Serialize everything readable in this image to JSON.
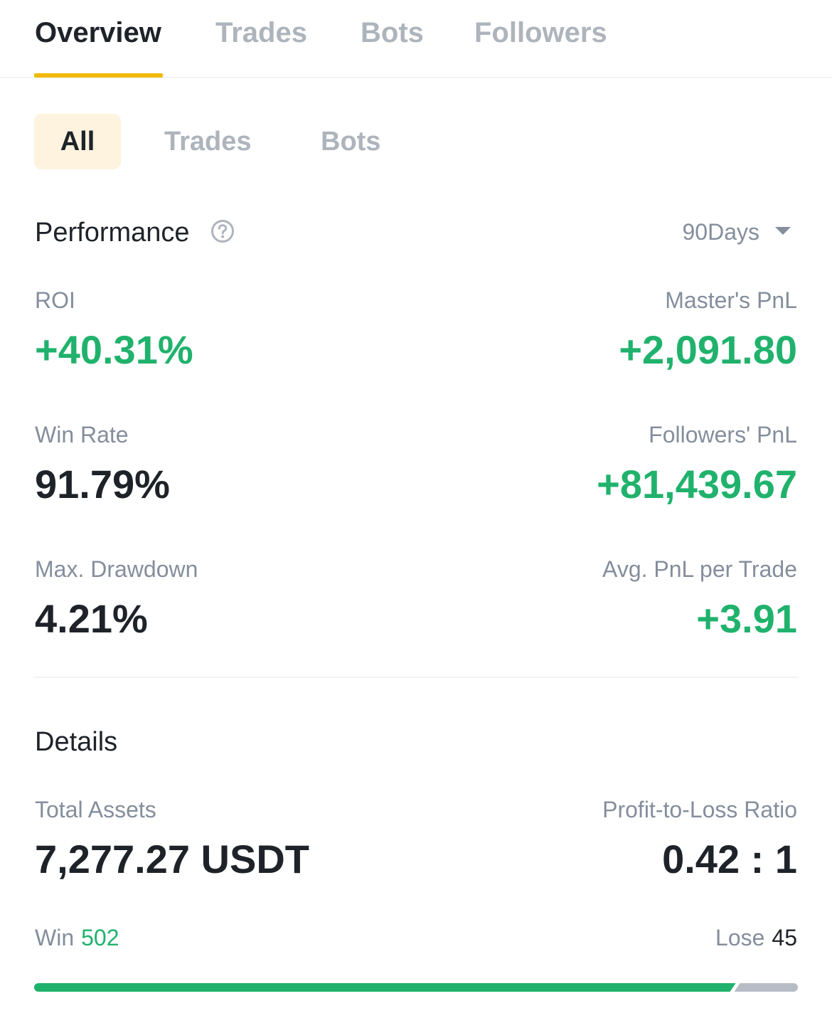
{
  "top_tabs": [
    "Overview",
    "Trades",
    "Bots",
    "Followers"
  ],
  "sub_tabs": [
    "All",
    "Trades",
    "Bots"
  ],
  "performance": {
    "title": "Performance",
    "period": "90Days",
    "roi_label": "ROI",
    "roi_value": "+40.31%",
    "master_pnl_label": "Master's PnL",
    "master_pnl_value": "+2,091.80",
    "win_rate_label": "Win Rate",
    "win_rate_value": "91.79%",
    "followers_pnl_label": "Followers' PnL",
    "followers_pnl_value": "+81,439.67",
    "max_drawdown_label": "Max. Drawdown",
    "max_drawdown_value": "4.21%",
    "avg_pnl_label": "Avg. PnL per Trade",
    "avg_pnl_value": "+3.91"
  },
  "details": {
    "title": "Details",
    "total_assets_label": "Total Assets",
    "total_assets_value": "7,277.27 USDT",
    "pl_ratio_label": "Profit-to-Loss Ratio",
    "pl_ratio_value": "0.42 : 1",
    "win_label": "Win",
    "win_count": "502",
    "lose_label": "Lose",
    "lose_count": "45"
  },
  "win_fraction": 0.9177,
  "colors": {
    "accent": "#f0b90b",
    "positive": "#20b26c",
    "muted": "#aeb4bc",
    "text": "#1e2329",
    "sub_tab_active_bg": "#fdf3de"
  }
}
